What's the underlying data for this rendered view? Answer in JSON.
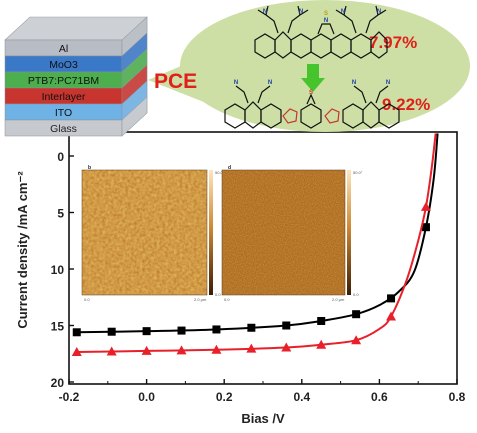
{
  "chart_data": {
    "type": "line",
    "xlabel": "Bias /V",
    "ylabel": "Current density /mA cm⁻²",
    "xlim": [
      -0.2,
      0.8
    ],
    "ylim": [
      0,
      20
    ],
    "y_inverted": true,
    "grid": false,
    "x_ticks": [
      "-0.2",
      "0.0",
      "0.2",
      "0.4",
      "0.6",
      "0.8"
    ],
    "y_ticks": [
      "0",
      "5",
      "10",
      "15",
      "20"
    ],
    "series": [
      {
        "color": "#000000",
        "marker": "square",
        "points": [
          [
            -0.18,
            15.6
          ],
          [
            -0.09,
            15.55
          ],
          [
            0.0,
            15.5
          ],
          [
            0.09,
            15.45
          ],
          [
            0.18,
            15.35
          ],
          [
            0.27,
            15.2
          ],
          [
            0.36,
            15.0
          ],
          [
            0.45,
            14.6
          ],
          [
            0.54,
            14.0
          ],
          [
            0.63,
            12.6
          ],
          [
            0.72,
            6.3
          ]
        ],
        "curve": [
          [
            -0.18,
            15.6
          ],
          [
            0.0,
            15.5
          ],
          [
            0.18,
            15.35
          ],
          [
            0.36,
            15.0
          ],
          [
            0.45,
            14.6
          ],
          [
            0.54,
            14.0
          ],
          [
            0.6,
            13.2
          ],
          [
            0.65,
            12.0
          ],
          [
            0.69,
            10.2
          ],
          [
            0.72,
            6.3
          ],
          [
            0.74,
            2.0
          ],
          [
            0.75,
            -2.0
          ]
        ]
      },
      {
        "color": "#e8202a",
        "marker": "triangle",
        "points": [
          [
            -0.18,
            17.35
          ],
          [
            -0.09,
            17.3
          ],
          [
            0.0,
            17.25
          ],
          [
            0.09,
            17.2
          ],
          [
            0.18,
            17.15
          ],
          [
            0.27,
            17.05
          ],
          [
            0.36,
            16.95
          ],
          [
            0.45,
            16.7
          ],
          [
            0.54,
            16.3
          ],
          [
            0.63,
            14.2
          ],
          [
            0.72,
            4.5
          ]
        ],
        "curve": [
          [
            -0.18,
            17.35
          ],
          [
            0.0,
            17.25
          ],
          [
            0.18,
            17.15
          ],
          [
            0.36,
            16.95
          ],
          [
            0.45,
            16.7
          ],
          [
            0.54,
            16.3
          ],
          [
            0.6,
            15.3
          ],
          [
            0.63,
            14.2
          ],
          [
            0.67,
            11.0
          ],
          [
            0.7,
            7.5
          ],
          [
            0.72,
            4.5
          ],
          [
            0.735,
            1.0
          ],
          [
            0.745,
            -2.0
          ]
        ]
      }
    ]
  },
  "device_stack": {
    "layers": [
      {
        "label": "Al",
        "color": "#b8bcc4"
      },
      {
        "label": "MoO3",
        "color": "#3a78c8"
      },
      {
        "label": "PTB7:PC71BM",
        "color": "#4cae4c"
      },
      {
        "label": "Interlayer",
        "color": "#c8342e"
      },
      {
        "label": "ITO",
        "color": "#6fb2e6"
      },
      {
        "label": "Glass",
        "color": "#c6c9ce"
      }
    ]
  },
  "callout": {
    "pce_label": "PCE",
    "value_top": "7.97%",
    "value_bottom": "9.22%",
    "bubble_color": "#cddfa4"
  },
  "afm_images": [
    {
      "panel": "b",
      "scale_top": "50.0°",
      "scale_bottom": "0.0",
      "axis_left": "0.0",
      "axis_right": "2.0 μm"
    },
    {
      "panel": "d",
      "scale_top": "50.0°",
      "scale_bottom": "0.0",
      "axis_left": "0.0",
      "axis_right": "2.0 μm"
    }
  ]
}
